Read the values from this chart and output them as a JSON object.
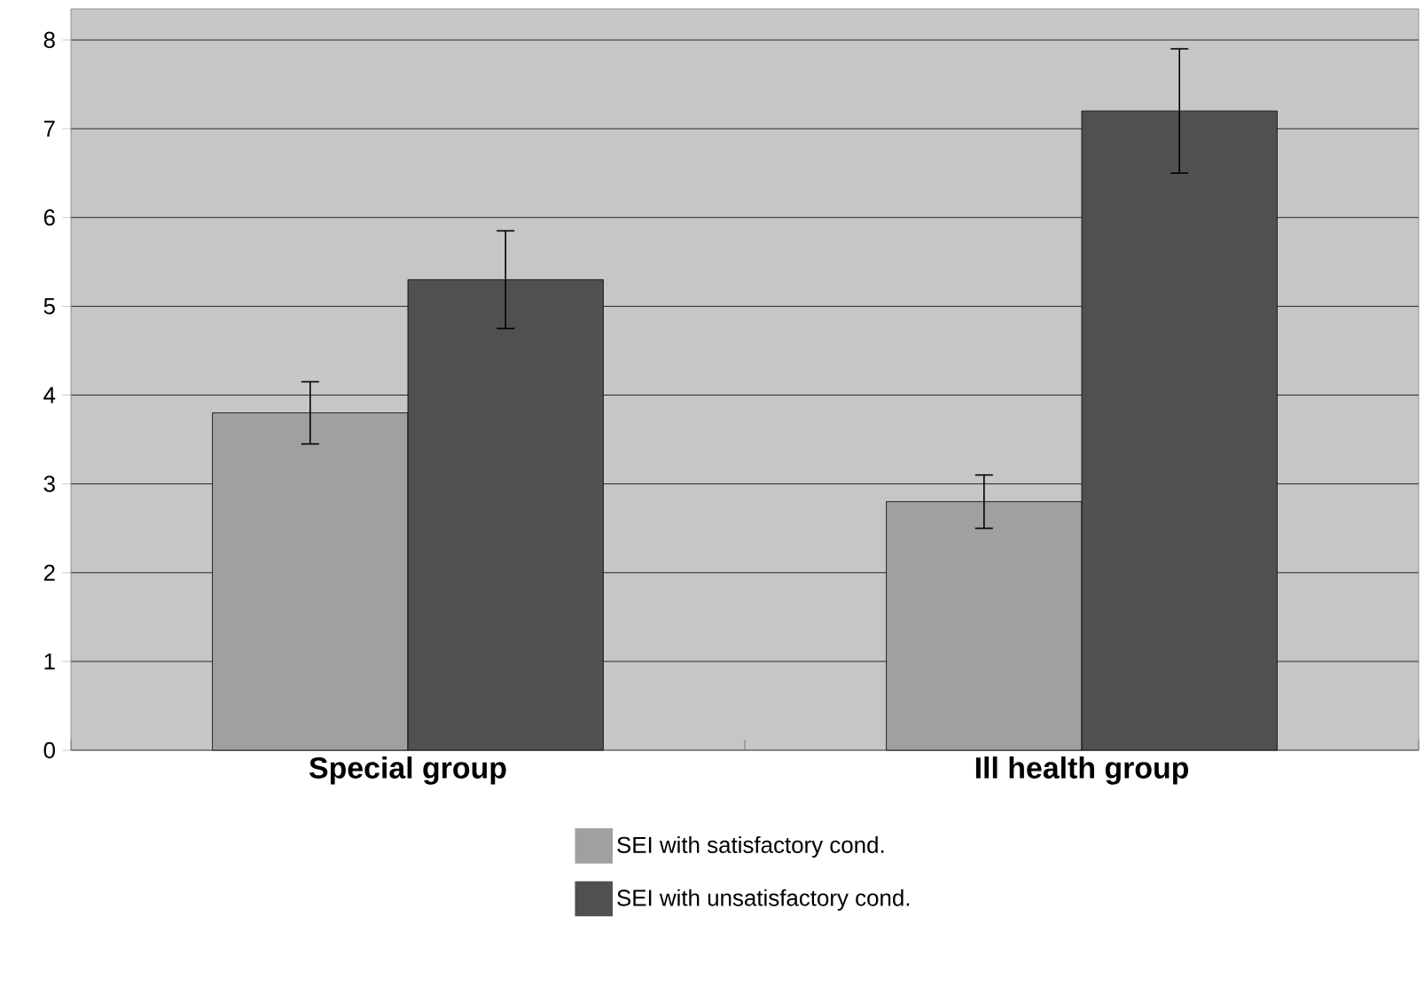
{
  "chart_data": {
    "type": "bar",
    "categories": [
      "Special group",
      "Ill health group"
    ],
    "series": [
      {
        "name": "SEI with satisfactory cond.",
        "color": "#a0a0a0",
        "values": [
          3.8,
          2.8
        ],
        "errors": [
          0.35,
          0.3
        ]
      },
      {
        "name": "SEI with unsatisfactory cond.",
        "color": "#505050",
        "values": [
          5.3,
          7.2
        ],
        "errors": [
          0.55,
          0.7
        ]
      }
    ],
    "ylim": [
      0,
      8.35
    ],
    "yticks": [
      0,
      1,
      2,
      3,
      4,
      5,
      6,
      7,
      8
    ],
    "grid": "y",
    "legend": "bottom"
  }
}
